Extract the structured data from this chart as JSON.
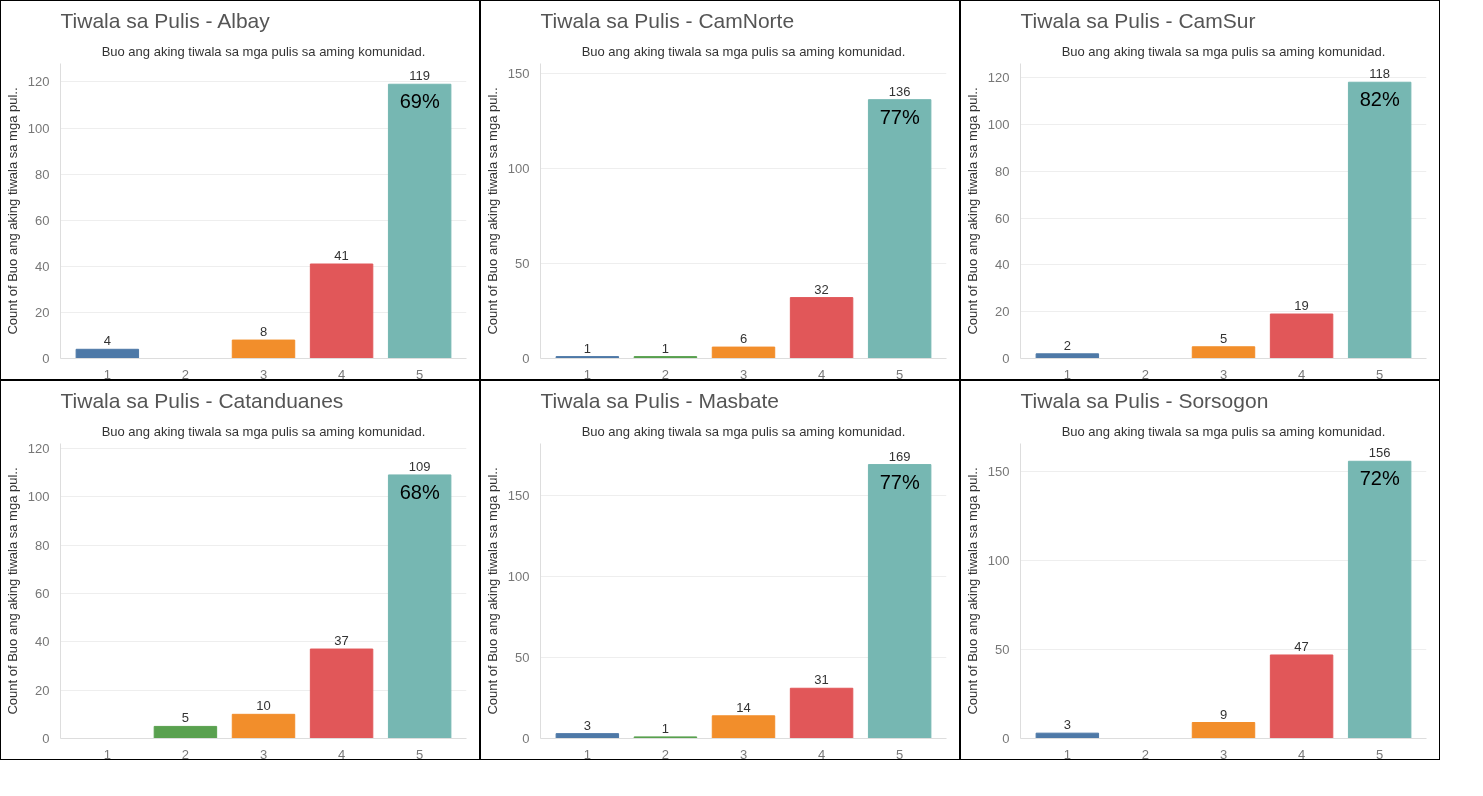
{
  "chart_data": [
    {
      "type": "bar",
      "title": "Tiwala sa Pulis - Albay",
      "subtitle": "Buo ang aking tiwala sa mga pulis sa aming komunidad.",
      "ylabel": "Count of Buo ang aking tiwala sa mga pul..",
      "categories": [
        "1",
        "2",
        "3",
        "4",
        "5"
      ],
      "values": [
        4,
        null,
        8,
        41,
        119
      ],
      "colors": [
        "#4e79a7",
        "#59a14f",
        "#f28e2b",
        "#e15759",
        "#76b7b2"
      ],
      "ylim": [
        0,
        128
      ],
      "yticks": [
        0,
        20,
        40,
        60,
        80,
        100,
        120
      ],
      "grid": "y",
      "data_labels": true,
      "annotations": [
        {
          "text": "69%",
          "x": "5",
          "y": 119
        }
      ]
    },
    {
      "type": "bar",
      "title": "Tiwala sa Pulis - CamNorte",
      "subtitle": "Buo ang aking tiwala sa mga pulis sa aming komunidad.",
      "ylabel": "Count of Buo ang aking tiwala sa mga pul..",
      "categories": [
        "1",
        "2",
        "3",
        "4",
        "5"
      ],
      "values": [
        1,
        1,
        6,
        32,
        136
      ],
      "colors": [
        "#4e79a7",
        "#59a14f",
        "#f28e2b",
        "#e15759",
        "#76b7b2"
      ],
      "ylim": [
        0,
        155
      ],
      "yticks": [
        0,
        50,
        100,
        150
      ],
      "grid": "y",
      "data_labels": true,
      "annotations": [
        {
          "text": "77%",
          "x": "5",
          "y": 136
        }
      ]
    },
    {
      "type": "bar",
      "title": "Tiwala sa Pulis - CamSur",
      "subtitle": "Buo ang aking tiwala sa mga pulis sa aming komunidad.",
      "ylabel": "Count of Buo ang aking tiwala sa mga pul..",
      "categories": [
        "1",
        "2",
        "3",
        "4",
        "5"
      ],
      "values": [
        2,
        null,
        5,
        19,
        118
      ],
      "colors": [
        "#4e79a7",
        "#59a14f",
        "#f28e2b",
        "#e15759",
        "#76b7b2"
      ],
      "ylim": [
        0,
        126
      ],
      "yticks": [
        0,
        20,
        40,
        60,
        80,
        100,
        120
      ],
      "grid": "y",
      "data_labels": true,
      "annotations": [
        {
          "text": "82%",
          "x": "5",
          "y": 118
        }
      ]
    },
    {
      "type": "bar",
      "title": "Tiwala sa Pulis - Catanduanes",
      "subtitle": "Buo ang aking tiwala sa mga pulis sa aming komunidad.",
      "ylabel": "Count of Buo ang aking tiwala sa mga pul..",
      "categories": [
        "1",
        "2",
        "3",
        "4",
        "5"
      ],
      "values": [
        null,
        5,
        10,
        37,
        109
      ],
      "colors": [
        "#4e79a7",
        "#59a14f",
        "#f28e2b",
        "#e15759",
        "#76b7b2"
      ],
      "ylim": [
        0,
        122
      ],
      "yticks": [
        0,
        20,
        40,
        60,
        80,
        100,
        120
      ],
      "grid": "y",
      "data_labels": true,
      "annotations": [
        {
          "text": "68%",
          "x": "5",
          "y": 109
        }
      ]
    },
    {
      "type": "bar",
      "title": "Tiwala sa Pulis - Masbate",
      "subtitle": "Buo ang aking tiwala sa mga pulis sa aming komunidad.",
      "ylabel": "Count of Buo ang aking tiwala sa mga pul..",
      "categories": [
        "1",
        "2",
        "3",
        "4",
        "5"
      ],
      "values": [
        3,
        1,
        14,
        31,
        169
      ],
      "colors": [
        "#4e79a7",
        "#59a14f",
        "#f28e2b",
        "#e15759",
        "#76b7b2"
      ],
      "ylim": [
        0,
        182
      ],
      "yticks": [
        0,
        50,
        100,
        150
      ],
      "grid": "y",
      "data_labels": true,
      "annotations": [
        {
          "text": "77%",
          "x": "5",
          "y": 169
        }
      ]
    },
    {
      "type": "bar",
      "title": "Tiwala sa Pulis - Sorsogon",
      "subtitle": "Buo ang aking tiwala sa mga pulis sa aming komunidad.",
      "ylabel": "Count of Buo ang aking tiwala sa mga pul..",
      "categories": [
        "1",
        "2",
        "3",
        "4",
        "5"
      ],
      "values": [
        3,
        null,
        9,
        47,
        156
      ],
      "colors": [
        "#4e79a7",
        "#59a14f",
        "#f28e2b",
        "#e15759",
        "#76b7b2"
      ],
      "ylim": [
        0,
        166
      ],
      "yticks": [
        0,
        50,
        100,
        150
      ],
      "grid": "y",
      "data_labels": true,
      "annotations": [
        {
          "text": "72%",
          "x": "5",
          "y": 156
        }
      ]
    }
  ]
}
